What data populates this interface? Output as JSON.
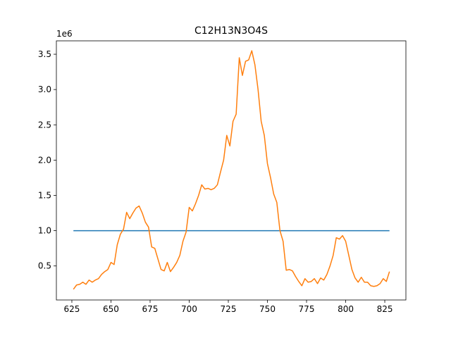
{
  "chart_data": {
    "type": "line",
    "title": "C12H13N3O4S",
    "y_offset_label": "1e6",
    "xlim": [
      615.1,
      838.5
    ],
    "xticks": [
      625,
      650,
      675,
      700,
      725,
      750,
      775,
      800,
      825
    ],
    "ylim": [
      0.018,
      3.69
    ],
    "yticks": [
      0.5,
      {
        "value": 1,
        "label": "1.0"
      },
      1.5,
      {
        "value": 2,
        "label": "2.0"
      },
      2.5,
      {
        "value": 3,
        "label": "3.0"
      },
      3.5
    ],
    "series": [
      {
        "color": "#1f77b4",
        "x": [
          626,
          828
        ],
        "values": [
          1,
          1
        ]
      },
      {
        "color": "#ff7f0e",
        "x": [
          626,
          628,
          630,
          632,
          634,
          636,
          638,
          640,
          642,
          644,
          646,
          648,
          650,
          652,
          654,
          656,
          658,
          660,
          662,
          664,
          666,
          668,
          670,
          672,
          674,
          676,
          678,
          680,
          682,
          684,
          686,
          688,
          690,
          692,
          694,
          696,
          698,
          700,
          702,
          704,
          706,
          708,
          710,
          712,
          714,
          716,
          718,
          720,
          722,
          724,
          726,
          728,
          730,
          732,
          734,
          736,
          738,
          740,
          742,
          744,
          746,
          748,
          750,
          752,
          754,
          756,
          758,
          760,
          762,
          764,
          766,
          768,
          770,
          772,
          774,
          776,
          778,
          780,
          782,
          784,
          786,
          788,
          790,
          792,
          794,
          796,
          798,
          800,
          802,
          804,
          806,
          808,
          810,
          812,
          814,
          816,
          818,
          820,
          822,
          824,
          826,
          828
        ],
        "values": [
          0.17,
          0.23,
          0.24,
          0.27,
          0.24,
          0.3,
          0.27,
          0.3,
          0.32,
          0.38,
          0.42,
          0.45,
          0.55,
          0.52,
          0.8,
          0.95,
          1.02,
          1.26,
          1.17,
          1.25,
          1.32,
          1.35,
          1.25,
          1.12,
          1.05,
          0.77,
          0.75,
          0.6,
          0.45,
          0.43,
          0.55,
          0.42,
          0.48,
          0.55,
          0.65,
          0.85,
          0.98,
          1.33,
          1.28,
          1.38,
          1.5,
          1.65,
          1.59,
          1.6,
          1.58,
          1.6,
          1.65,
          1.83,
          2.0,
          2.35,
          2.2,
          2.55,
          2.65,
          3.45,
          3.2,
          3.4,
          3.42,
          3.55,
          3.35,
          3.0,
          2.55,
          2.35,
          1.95,
          1.75,
          1.52,
          1.4,
          1.0,
          0.85,
          0.44,
          0.45,
          0.43,
          0.35,
          0.28,
          0.22,
          0.32,
          0.27,
          0.28,
          0.32,
          0.25,
          0.33,
          0.3,
          0.38,
          0.5,
          0.65,
          0.9,
          0.88,
          0.93,
          0.85,
          0.65,
          0.45,
          0.33,
          0.27,
          0.34,
          0.27,
          0.27,
          0.22,
          0.21,
          0.22,
          0.25,
          0.32,
          0.28,
          0.42
        ]
      }
    ]
  }
}
